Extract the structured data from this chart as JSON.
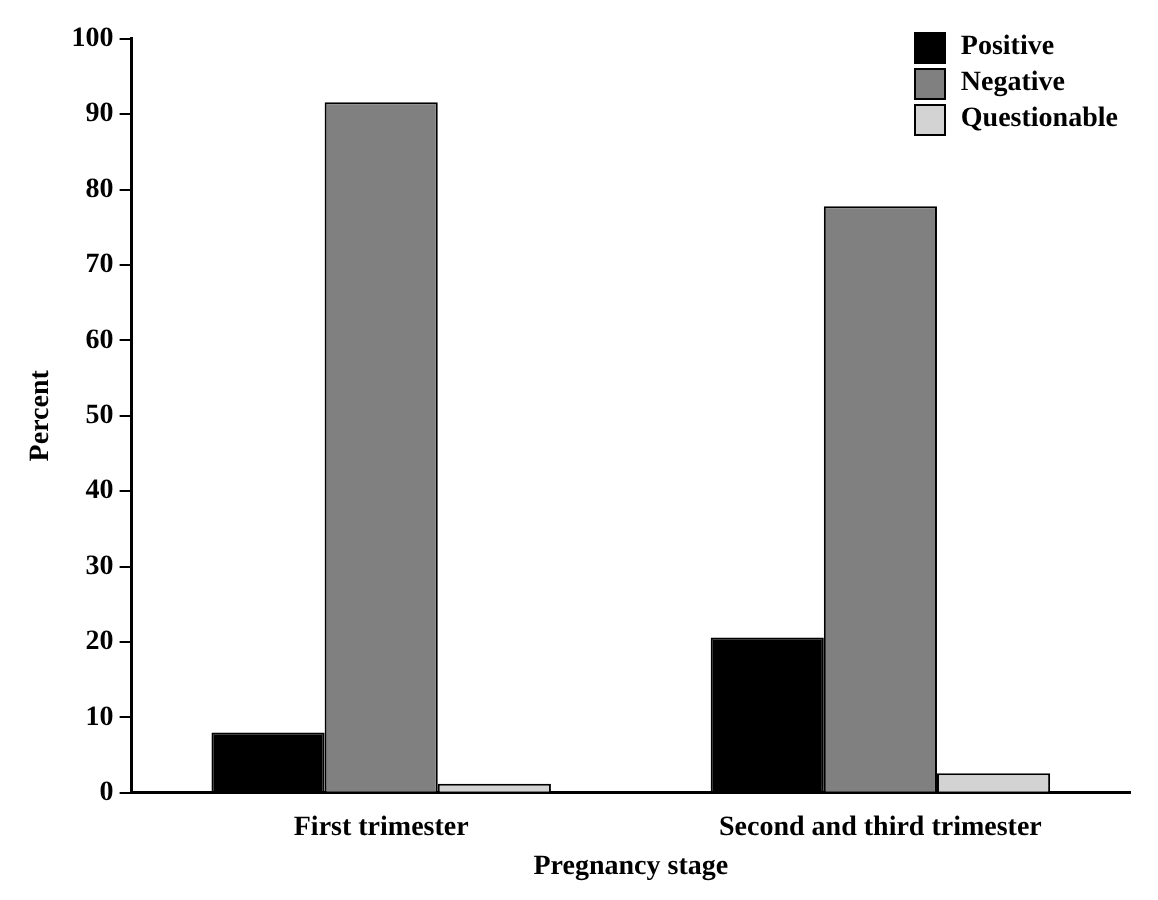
{
  "chart_data": {
    "type": "bar",
    "xlabel": "Pregnancy stage",
    "ylabel": "Percent",
    "categories": [
      "First trimester",
      "Second and third trimester"
    ],
    "series": [
      {
        "name": "Positive",
        "color": "#000000",
        "values": [
          8,
          20.6
        ]
      },
      {
        "name": "Negative",
        "color": "#808080",
        "values": [
          91.6,
          77.8
        ]
      },
      {
        "name": "Questionable",
        "color": "#d3d3d3",
        "values": [
          1.2,
          2.6
        ]
      }
    ],
    "ylim": [
      0,
      100
    ],
    "yticks": [
      0,
      10,
      20,
      30,
      40,
      50,
      60,
      70,
      80,
      90,
      100
    ],
    "grid": false,
    "legend": "top right"
  }
}
